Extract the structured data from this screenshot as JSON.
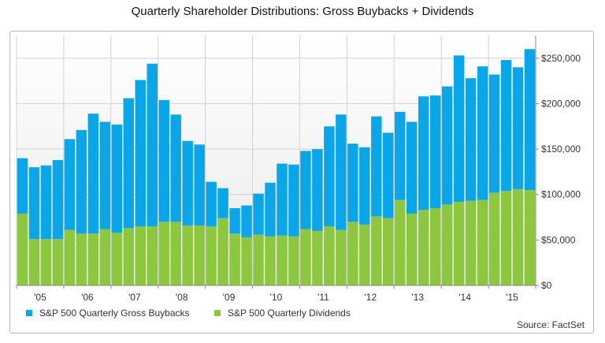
{
  "chart_data": {
    "type": "bar",
    "stacked": true,
    "title": "Quarterly Shareholder Distributions: Gross Buybacks + Dividends",
    "xlabel": "",
    "ylabel": "",
    "ylim": [
      0,
      275000
    ],
    "yticks": [
      0,
      50000,
      100000,
      150000,
      200000,
      250000
    ],
    "ytick_labels": [
      "$0",
      "$50,000",
      "$100,000",
      "$150,000",
      "$200,000",
      "$250,000"
    ],
    "year_labels": [
      "'05",
      "'06",
      "'07",
      "'08",
      "'09",
      "'10",
      "'11",
      "'12",
      "'13",
      "'14",
      "'15"
    ],
    "categories": [
      "Q1 2005",
      "Q2 2005",
      "Q3 2005",
      "Q4 2005",
      "Q1 2006",
      "Q2 2006",
      "Q3 2006",
      "Q4 2006",
      "Q1 2007",
      "Q2 2007",
      "Q3 2007",
      "Q4 2007",
      "Q1 2008",
      "Q2 2008",
      "Q3 2008",
      "Q4 2008",
      "Q1 2009",
      "Q2 2009",
      "Q3 2009",
      "Q4 2009",
      "Q1 2010",
      "Q2 2010",
      "Q3 2010",
      "Q4 2010",
      "Q1 2011",
      "Q2 2011",
      "Q3 2011",
      "Q4 2011",
      "Q1 2012",
      "Q2 2012",
      "Q3 2012",
      "Q4 2012",
      "Q1 2013",
      "Q2 2013",
      "Q3 2013",
      "Q4 2013",
      "Q1 2014",
      "Q2 2014",
      "Q3 2014",
      "Q4 2014",
      "Q1 2015",
      "Q2 2015",
      "Q3 2015",
      "Q4 2015"
    ],
    "series": [
      {
        "name": "S&P 500 Quarterly Dividends",
        "color": "#8dc63f",
        "values": [
          79000,
          51000,
          51000,
          51000,
          61000,
          57000,
          57000,
          62000,
          58000,
          63000,
          65000,
          65000,
          70000,
          70000,
          66000,
          66000,
          65000,
          74000,
          57000,
          53000,
          56000,
          54000,
          55000,
          54000,
          62000,
          60000,
          65000,
          61000,
          70000,
          67000,
          76000,
          74000,
          94000,
          79000,
          83000,
          85000,
          89000,
          92000,
          93000,
          94000,
          102000,
          104000,
          106000,
          105000
        ]
      },
      {
        "name": "S&P 500 Quarterly Gross Buybacks",
        "color": "#0aa6e8",
        "values": [
          61000,
          79000,
          81000,
          87000,
          100000,
          114000,
          132000,
          118000,
          119000,
          143000,
          161000,
          179000,
          134000,
          118000,
          93000,
          89000,
          49000,
          33000,
          28000,
          35000,
          45000,
          59000,
          79000,
          79000,
          86000,
          90000,
          110000,
          127000,
          86000,
          85000,
          110000,
          94000,
          97000,
          101000,
          125000,
          124000,
          130000,
          161000,
          135000,
          147000,
          130000,
          144000,
          134000,
          155000
        ]
      }
    ],
    "legend_position": "bottom-left",
    "grid": true
  },
  "legend": {
    "buybacks_label": "S&P 500 Quarterly Gross Buybacks",
    "dividends_label": "S&P 500 Quarterly Dividends"
  },
  "source": "Source: FactSet",
  "colors": {
    "buybacks": "#0aa6e8",
    "dividends": "#8dc63f",
    "plot_bg_top": "#ffffff",
    "plot_bg_bottom": "#e9e9e9",
    "grid": "#d2d2d2"
  }
}
